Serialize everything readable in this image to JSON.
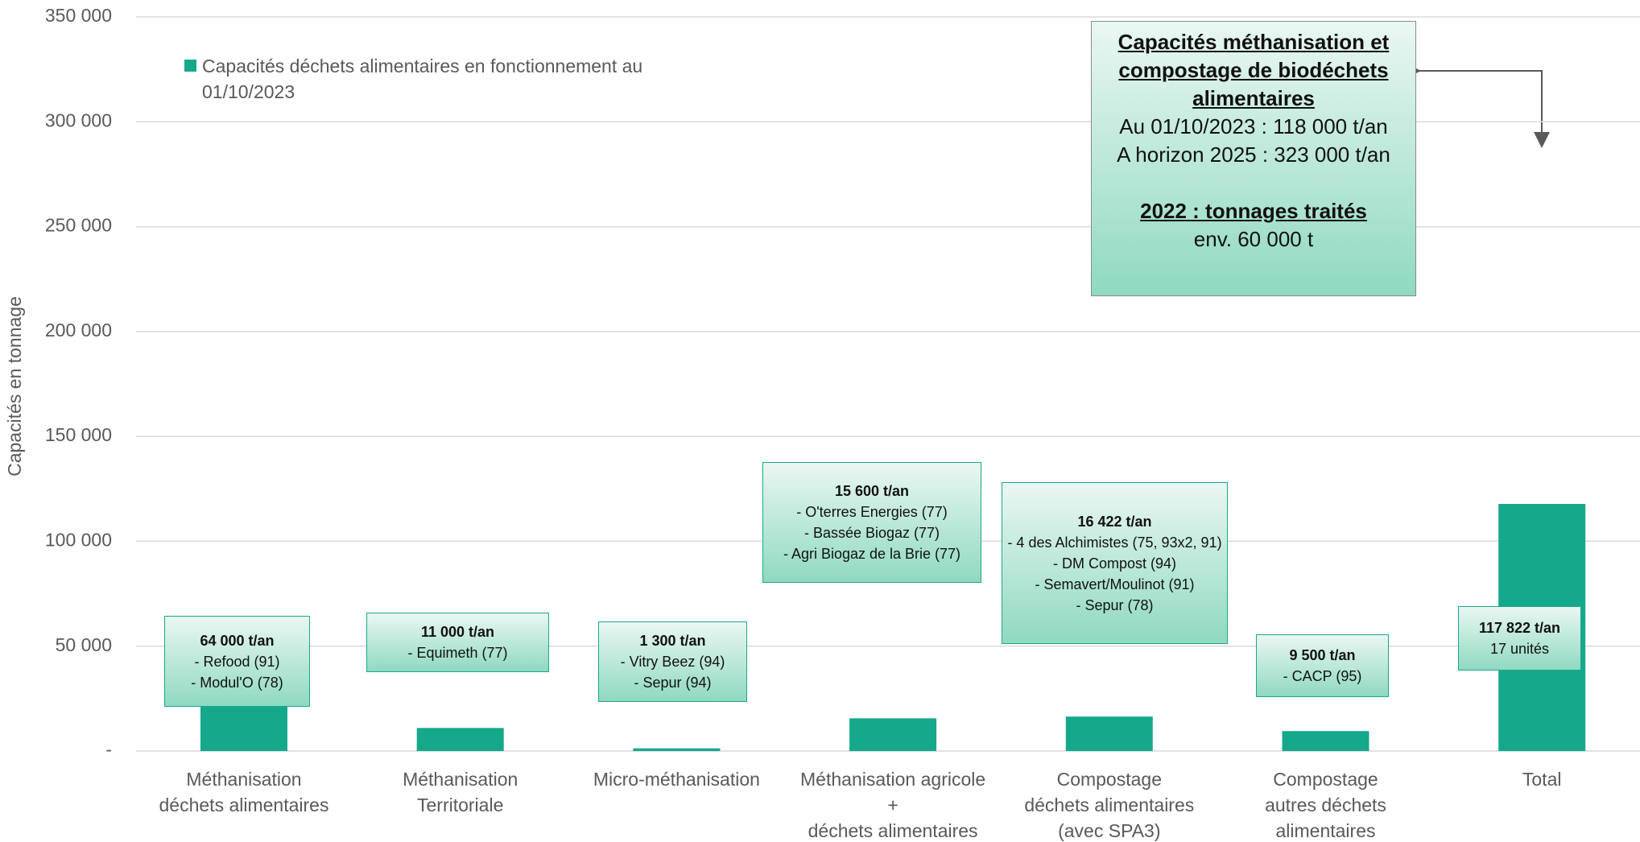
{
  "chart_data": {
    "type": "bar",
    "y_label": "Capacités en tonnage",
    "categories": [
      "Méthanisation\ndéchets alimentaires",
      "Méthanisation\nTerritoriale",
      "Micro-méthanisation",
      "Méthanisation agricole\n+\ndéchets alimentaires",
      "Compostage\ndéchets alimentaires\n(avec SPA3)",
      "Compostage\nautres déchets\nalimentaires",
      "Total"
    ],
    "series": [
      {
        "name": "Capacités déchets alimentaires en fonctionnement au 01/10/2023",
        "color": "#16a88a",
        "values": [
          64000,
          11000,
          1300,
          15600,
          16422,
          9500,
          117822
        ]
      }
    ],
    "ylim": [
      0,
      350000
    ],
    "yticks": [
      {
        "value": 0,
        "label": "-"
      },
      {
        "value": 50000,
        "label": "50 000"
      },
      {
        "value": 100000,
        "label": "100 000"
      },
      {
        "value": 150000,
        "label": "150 000"
      },
      {
        "value": 200000,
        "label": "200 000"
      },
      {
        "value": 250000,
        "label": "250 000"
      },
      {
        "value": 300000,
        "label": "300 000"
      },
      {
        "value": 350000,
        "label": "350 000"
      }
    ],
    "grid": true,
    "legend": "top-left",
    "annotations": [
      {
        "title": "64 000 t/an",
        "lines": [
          "- Refood (91)",
          "- Modul'O (78)"
        ]
      },
      {
        "title": "11 000 t/an",
        "lines": [
          "- Equimeth (77)"
        ]
      },
      {
        "title": "1 300 t/an",
        "lines": [
          "- Vitry Beez (94)",
          "- Sepur (94)"
        ]
      },
      {
        "title": "15 600 t/an",
        "lines": [
          "- O'terres Energies (77)",
          "- Bassée Biogaz (77)",
          "- Agri Biogaz de la Brie (77)"
        ]
      },
      {
        "title": "16 422 t/an",
        "lines": [
          "- 4 des Alchimistes (75, 93x2, 91)",
          "- DM Compost (94)",
          "- Semavert/Moulinot (91)",
          "- Sepur (78)"
        ]
      },
      {
        "title": "9 500 t/an",
        "lines": [
          "- CACP (95)"
        ]
      },
      {
        "title": "117 822 t/an",
        "lines": [
          "17 unités"
        ]
      }
    ],
    "callout": {
      "title": "Capacités méthanisation et compostage de biodéchets alimentaires",
      "lines": [
        "Au 01/10/2023 : 118 000 t/an",
        "A horizon 2025 : 323 000 t/an"
      ],
      "subtitle": "2022 : tonnages traités",
      "note": "env. 60 000 t"
    }
  }
}
